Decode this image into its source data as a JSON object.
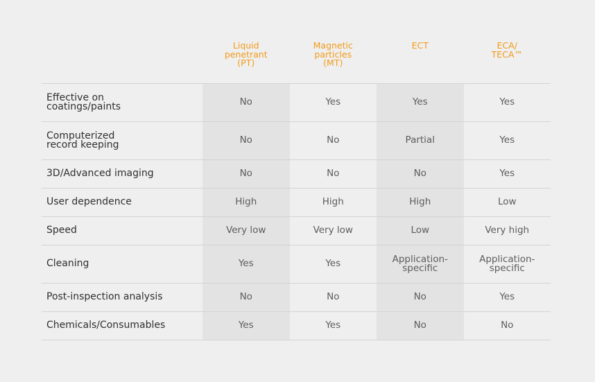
{
  "columns": [
    "Liquid\npenetrant\n(PT)",
    "Magnetic\nparticles\n(MT)",
    "ECT",
    "ECA/\nTECA™"
  ],
  "rows": [
    {
      "label": "Effective on\ncoatings/paints",
      "values": [
        "No",
        "Yes",
        "Yes",
        "Yes"
      ]
    },
    {
      "label": "Computerized\nrecord keeping",
      "values": [
        "No",
        "No",
        "Partial",
        "Yes"
      ]
    },
    {
      "label": "3D/Advanced imaging",
      "values": [
        "No",
        "No",
        "No",
        "Yes"
      ]
    },
    {
      "label": "User dependence",
      "values": [
        "High",
        "High",
        "High",
        "Low"
      ]
    },
    {
      "label": "Speed",
      "values": [
        "Very low",
        "Very low",
        "Low",
        "Very high"
      ]
    },
    {
      "label": "Cleaning",
      "values": [
        "Yes",
        "Yes",
        "Application-\nspecific",
        "Application-\nspecific"
      ]
    },
    {
      "label": "Post-inspection analysis",
      "values": [
        "No",
        "No",
        "No",
        "Yes"
      ]
    },
    {
      "label": "Chemicals/Consumables",
      "values": [
        "Yes",
        "Yes",
        "No",
        "No"
      ]
    }
  ],
  "colors": {
    "background": "#efefef",
    "shaded_column": "#e3e3e3",
    "header_text": "#f29a17",
    "label_text": "#2f2f2f",
    "cell_text": "#5c5c5c",
    "divider": "#d3d3d3"
  }
}
